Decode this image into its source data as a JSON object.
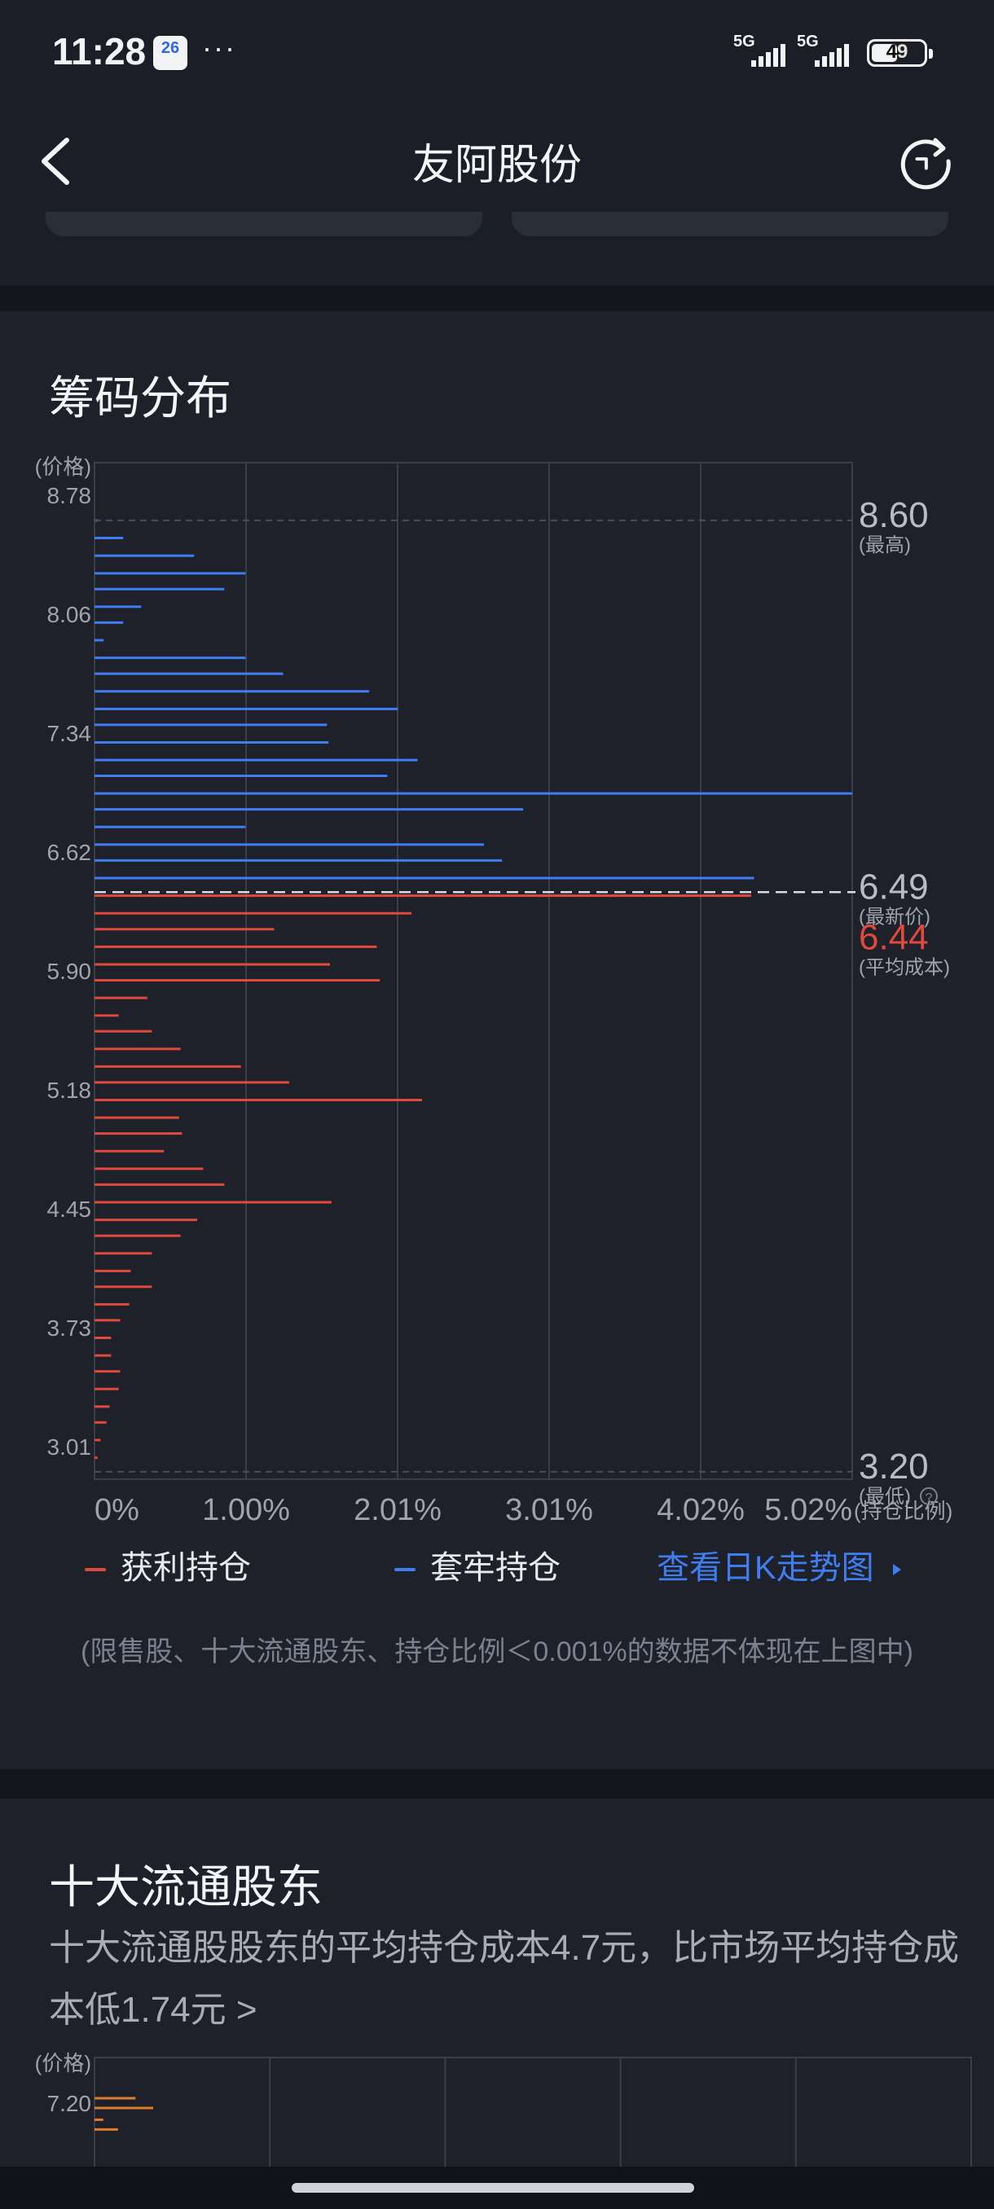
{
  "status_bar": {
    "time": "11:28",
    "calendar_badge": "26",
    "more": "···",
    "signal_1": "5G",
    "signal_2": "5G",
    "battery": "49"
  },
  "nav": {
    "title": "友阿股份"
  },
  "chip_section": {
    "title": "筹码分布",
    "legend": {
      "profit": "获利持仓",
      "trapped": "套牢持仓"
    },
    "kline_link": "查看日K走势图",
    "note": "(限售股、十大流通股东、持仓比例＜0.001%的数据不体现在上图中)"
  },
  "chart_data": {
    "type": "bar",
    "orientation": "horizontal",
    "ylabel": "(价格)",
    "xlabel": "(持仓比例)",
    "y_ticks": [
      "8.78",
      "8.06",
      "7.34",
      "6.62",
      "5.90",
      "5.18",
      "4.45",
      "3.73",
      "3.01"
    ],
    "x_ticks": [
      "0%",
      "1.00%",
      "2.01%",
      "3.01%",
      "4.02%",
      "5.02%"
    ],
    "ylim": [
      3.01,
      8.78
    ],
    "xlim": [
      0,
      5.02
    ],
    "markers": [
      {
        "value": "8.60",
        "label": "(最高)",
        "price": 8.6
      },
      {
        "value": "6.49",
        "label": "(最新价)",
        "price": 6.49
      },
      {
        "value": "6.44",
        "label": "(平均成本)",
        "price": 6.44
      },
      {
        "value": "3.20",
        "label": "(最低)",
        "price": 3.2
      }
    ],
    "series": [
      {
        "name": "套牢持仓",
        "color": "#3f7df0",
        "prices": [
          8.6,
          8.5,
          8.4,
          8.3,
          8.21,
          8.11,
          8.02,
          7.92,
          7.82,
          7.73,
          7.63,
          7.53,
          7.44,
          7.34,
          7.24,
          7.15,
          7.05,
          6.96,
          6.86,
          6.76,
          6.67,
          6.57
        ],
        "values": [
          0.02,
          0.19,
          0.66,
          1.0,
          0.86,
          0.31,
          0.19,
          0.06,
          1.0,
          1.25,
          1.82,
          2.01,
          1.54,
          1.55,
          2.14,
          1.94,
          5.02,
          2.84,
          1.0,
          2.58,
          2.7,
          4.37
        ]
      },
      {
        "name": "获利持仓",
        "color": "#e0493c",
        "prices": [
          6.47,
          6.37,
          6.28,
          6.18,
          6.08,
          5.99,
          5.89,
          5.79,
          5.7,
          5.6,
          5.5,
          5.41,
          5.31,
          5.21,
          5.12,
          5.02,
          4.92,
          4.83,
          4.73,
          4.63,
          4.54,
          4.44,
          4.34,
          4.25,
          4.15,
          4.06,
          3.96,
          3.86,
          3.77,
          3.67,
          3.57,
          3.48,
          3.38,
          3.28
        ],
        "values": [
          4.35,
          2.1,
          1.19,
          1.87,
          1.56,
          1.89,
          0.35,
          0.16,
          0.38,
          0.57,
          0.97,
          1.29,
          2.17,
          0.56,
          0.58,
          0.46,
          0.72,
          0.86,
          1.57,
          0.68,
          0.57,
          0.38,
          0.24,
          0.38,
          0.23,
          0.17,
          0.11,
          0.11,
          0.17,
          0.16,
          0.1,
          0.08,
          0.04,
          0.02
        ]
      }
    ]
  },
  "shareholders": {
    "title": "十大流通股东",
    "desc": "十大流通股股东的平均持仓成本4.7元，比市场平均持仓成本低1.74元 >",
    "chart_data": {
      "type": "bar",
      "orientation": "horizontal",
      "ylabel": "(价格)",
      "y_ticks": [
        "7.20"
      ],
      "color": "#e07a2c",
      "prices": [
        7.25,
        7.2,
        7.14,
        7.09
      ],
      "values": [
        0.28,
        0.4,
        0.06,
        0.16
      ]
    }
  }
}
